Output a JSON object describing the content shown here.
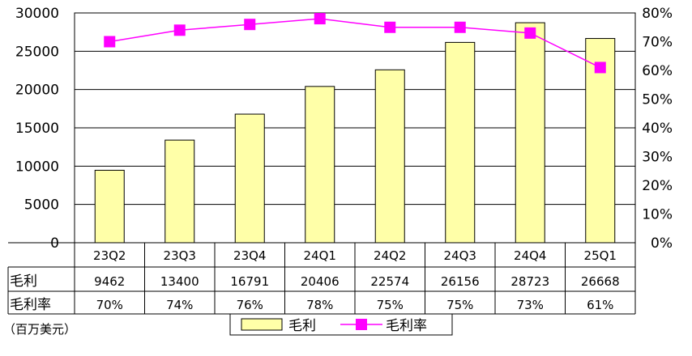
{
  "chart_data": {
    "type": "bar",
    "categories": [
      "23Q2",
      "23Q3",
      "23Q4",
      "24Q1",
      "24Q2",
      "24Q3",
      "24Q4",
      "25Q1"
    ],
    "series": [
      {
        "name": "毛利",
        "type": "bar",
        "axis": "left",
        "values": [
          9462,
          13400,
          16791,
          20406,
          22574,
          26156,
          28723,
          26668
        ],
        "color": "#ffffa8"
      },
      {
        "name": "毛利率",
        "type": "line",
        "axis": "right",
        "values": [
          70,
          74,
          76,
          78,
          75,
          75,
          73,
          61
        ],
        "color": "#ff00ff"
      }
    ],
    "y_left": {
      "min": 0,
      "max": 30000,
      "ticks": [
        "0",
        "5000",
        "10000",
        "15000",
        "20000",
        "25000",
        "30000"
      ]
    },
    "y_right": {
      "min": 0,
      "max": 80,
      "ticks": [
        "0%",
        "10%",
        "20%",
        "30%",
        "40%",
        "50%",
        "60%",
        "70%",
        "80%"
      ]
    },
    "table": {
      "rows": [
        {
          "label": "毛利",
          "cells": [
            "9462",
            "13400",
            "16791",
            "20406",
            "22574",
            "26156",
            "28723",
            "26668"
          ]
        },
        {
          "label": "毛利率",
          "cells": [
            "70%",
            "74%",
            "76%",
            "78%",
            "75%",
            "75%",
            "73%",
            "61%"
          ]
        }
      ]
    },
    "unit_note": "（百万美元）",
    "legend": {
      "position": "bottom",
      "items": [
        "毛利",
        "毛利率"
      ]
    },
    "grid": true
  }
}
